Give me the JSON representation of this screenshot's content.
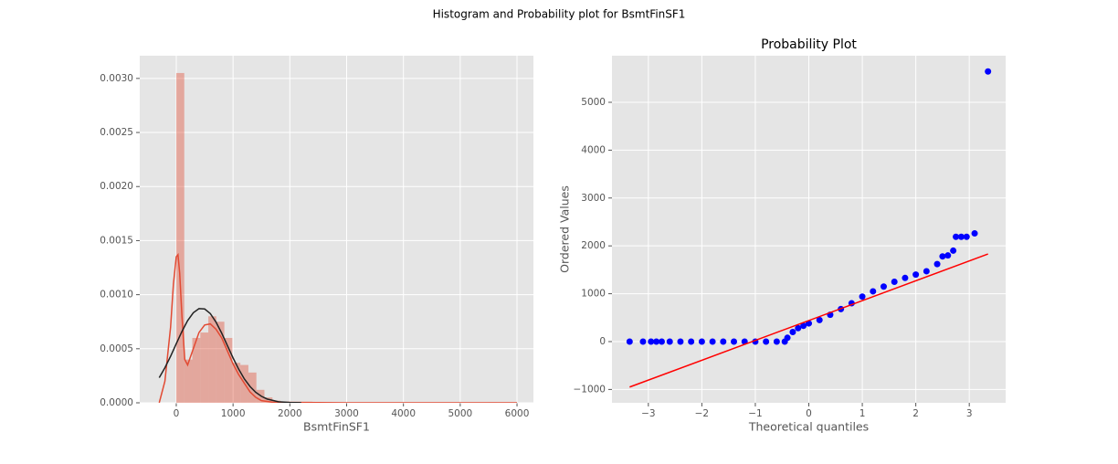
{
  "title": "Histogram and Probability plot for BsmtFinSF1",
  "chart_data": [
    {
      "type": "histogram",
      "xlabel": "BsmtFinSF1",
      "grid": true,
      "xlim": [
        -643,
        6289
      ],
      "ylim": [
        0,
        0.00321
      ],
      "xticks": [
        0,
        1000,
        2000,
        3000,
        4000,
        5000,
        6000
      ],
      "yticks": [
        {
          "value": 0,
          "label": "0.0000"
        },
        {
          "value": 0.0005,
          "label": "0.0005"
        },
        {
          "value": 0.001,
          "label": "0.0010"
        },
        {
          "value": 0.0015,
          "label": "0.0015"
        },
        {
          "value": 0.002,
          "label": "0.0020"
        },
        {
          "value": 0.0025,
          "label": "0.0025"
        },
        {
          "value": 0.003,
          "label": "0.0030"
        }
      ],
      "color": "#e24a33",
      "bins": [
        0,
        141.1,
        282.2,
        423.3,
        564.4,
        705.5,
        846.6,
        987.7,
        1128.8,
        1269.9,
        1411,
        1552.1,
        1693.2,
        1834.3,
        1975.4,
        2116.5,
        2257.6,
        2398.7,
        2539.8,
        2680.9,
        2822,
        2963.1,
        3104.2,
        3245.3,
        3386.4,
        3527.5,
        3668.6,
        3809.7,
        3950.8,
        4091.9,
        4233,
        4374.1,
        4515.2,
        4656.3,
        4797.4,
        4938.5,
        5079.6,
        5220.7,
        5361.8,
        5502.9,
        5644
      ],
      "counts": [
        0.00305,
        0.0004,
        0.0006,
        0.00065,
        0.0008,
        0.00075,
        0.0006,
        0.00037,
        0.00035,
        0.00028,
        0.00012,
        5e-05,
        2e-05,
        1e-05,
        1e-05,
        1e-05,
        1e-05,
        0,
        0,
        0,
        0,
        0,
        0,
        0,
        0,
        0,
        0,
        0,
        0,
        0,
        0,
        0,
        0,
        0,
        0,
        0,
        0,
        0,
        0,
        5e-06
      ],
      "lines": [
        {
          "color": "#e24a33",
          "x": [
            -300,
            -200,
            -100,
            -50,
            0,
            30,
            60,
            100,
            150,
            200,
            300,
            400,
            500,
            600,
            700,
            800,
            900,
            1000,
            1100,
            1200,
            1300,
            1400,
            1500,
            1700,
            2000,
            2500,
            3000,
            4000,
            5000,
            6000
          ],
          "values": [
            0,
            0.0002,
            0.0007,
            0.0011,
            0.00135,
            0.00137,
            0.0012,
            0.0008,
            0.0004,
            0.00035,
            0.0005,
            0.00065,
            0.00072,
            0.00073,
            0.00068,
            0.0006,
            0.00048,
            0.00036,
            0.00026,
            0.00018,
            0.0001,
            5e-05,
            2e-05,
            5e-06,
            3e-06,
            2e-06,
            0,
            0,
            0,
            0
          ]
        },
        {
          "color": "#222222",
          "x": [
            -300,
            -200,
            -100,
            0,
            100,
            200,
            300,
            400,
            500,
            600,
            700,
            800,
            900,
            1000,
            1100,
            1200,
            1300,
            1400,
            1500,
            1600,
            1800,
            2000,
            2200
          ],
          "values": [
            0.000232,
            0.000324,
            0.00043,
            0.000546,
            0.00066,
            0.00076,
            0.000833,
            0.000871,
            0.000868,
            0.000825,
            0.000746,
            0.000644,
            0.00053,
            0.000415,
            0.00031,
            0.00022,
            0.00015,
            9.7e-05,
            6e-05,
            3.5e-05,
            1e-05,
            3e-06,
            7e-07
          ]
        }
      ]
    },
    {
      "type": "scatter",
      "title": "Probability Plot",
      "xlabel": "Theoretical quantiles",
      "ylabel": "Ordered Values",
      "grid": true,
      "xlim": [
        -3.68,
        3.68
      ],
      "ylim": [
        -1279,
        5973
      ],
      "xticks": [
        {
          "value": -3,
          "label": "−3"
        },
        {
          "value": -2,
          "label": "−2"
        },
        {
          "value": -1,
          "label": "−1"
        },
        0,
        1,
        2,
        3
      ],
      "yticks": [
        {
          "value": -1000,
          "label": "−1000"
        },
        0,
        1000,
        2000,
        3000,
        4000,
        5000
      ],
      "series": [
        {
          "color": "#0000ff",
          "mode": "points",
          "x": [
            -3.35,
            -3.1,
            -2.95,
            -2.85,
            -2.75,
            -2.6,
            -2.4,
            -2.2,
            -2.0,
            -1.8,
            -1.6,
            -1.4,
            -1.2,
            -1.0,
            -0.8,
            -0.6,
            -0.45,
            -0.4,
            -0.3,
            -0.2,
            -0.1,
            0,
            0.2,
            0.4,
            0.6,
            0.8,
            1.0,
            1.2,
            1.4,
            1.6,
            1.8,
            2.0,
            2.2,
            2.4,
            2.5,
            2.6,
            2.7,
            2.75,
            2.85,
            2.95,
            3.1,
            3.35
          ],
          "values": [
            0,
            0,
            0,
            0,
            0,
            0,
            0,
            0,
            0,
            0,
            0,
            0,
            0,
            0,
            0,
            0,
            0,
            80,
            200,
            280,
            330,
            380,
            450,
            560,
            680,
            800,
            940,
            1050,
            1150,
            1250,
            1330,
            1400,
            1470,
            1620,
            1780,
            1800,
            1900,
            2190,
            2190,
            2190,
            2260,
            5644
          ]
        },
        {
          "color": "#ff0000",
          "mode": "line",
          "x": [
            -3.35,
            3.35
          ],
          "values": [
            -950,
            1830
          ]
        }
      ]
    }
  ]
}
